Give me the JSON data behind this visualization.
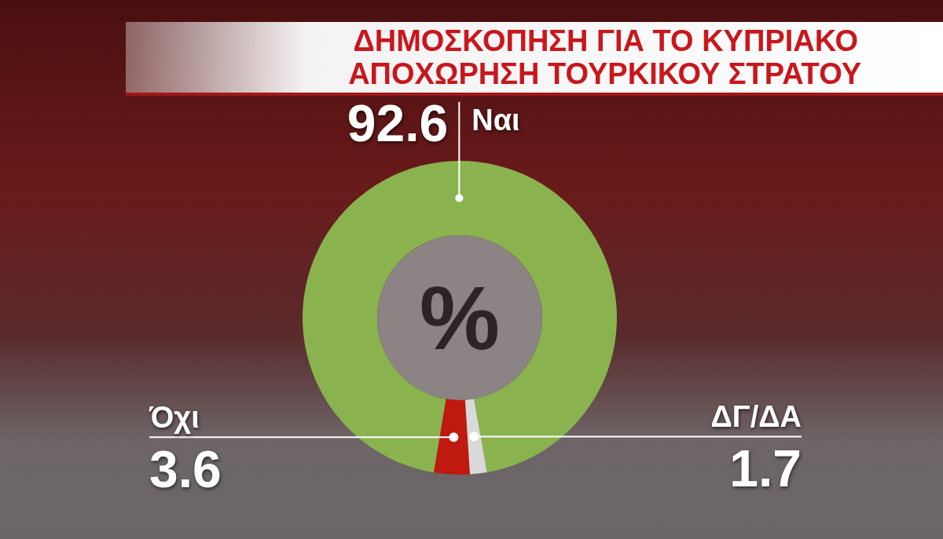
{
  "chart_data": {
    "type": "donut",
    "title": "ΔΗΜΟΣΚΟΠΗΣΗ ΓΙΑ ΤΟ ΚΥΠΡΙΑΚΟ",
    "subtitle": "ΑΠΟΧΩΡΗΣΗ ΤΟΥΡΚΙΚΟΥ ΣΤΡΑΤΟΥ",
    "categories": [
      "Ναι",
      "Όχι",
      "ΔΓ/ΔΑ"
    ],
    "values": [
      92.6,
      3.6,
      1.7
    ],
    "colors": [
      "#8ab34f",
      "#c0190f",
      "#d9d9d9"
    ],
    "data_labels": true,
    "annotations": [
      "%"
    ]
  }
}
